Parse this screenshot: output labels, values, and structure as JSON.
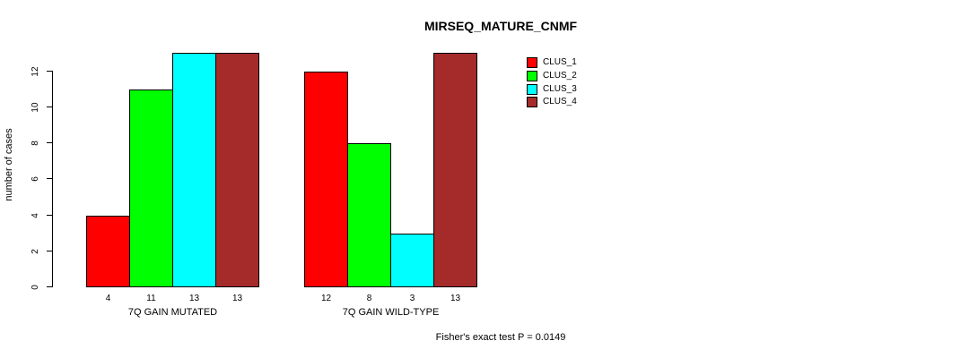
{
  "chart_data": {
    "type": "bar",
    "title": "MIRSEQ_MATURE_CNMF",
    "ylabel": "number of cases",
    "xlabel": "",
    "groups": [
      "7Q GAIN MUTATED",
      "7Q GAIN WILD-TYPE"
    ],
    "series": [
      {
        "name": "CLUS_1",
        "color": "#FF0000",
        "values": [
          4,
          12
        ]
      },
      {
        "name": "CLUS_2",
        "color": "#00FF00",
        "values": [
          11,
          8
        ]
      },
      {
        "name": "CLUS_3",
        "color": "#00FFFF",
        "values": [
          13,
          3
        ]
      },
      {
        "name": "CLUS_4",
        "color": "#A52A2A",
        "values": [
          13,
          13
        ]
      }
    ],
    "bar_value_labels": {
      "7Q GAIN MUTATED": [
        4,
        11,
        13,
        13
      ],
      "7Q GAIN WILD-TYPE": [
        12,
        8,
        3,
        13
      ]
    },
    "yticks": [
      0,
      2,
      4,
      6,
      8,
      10,
      12
    ],
    "ylim": [
      0,
      13
    ],
    "grid": false,
    "legend_position": "top-right",
    "annotation": "Fisher's exact test P = 0.0149"
  }
}
